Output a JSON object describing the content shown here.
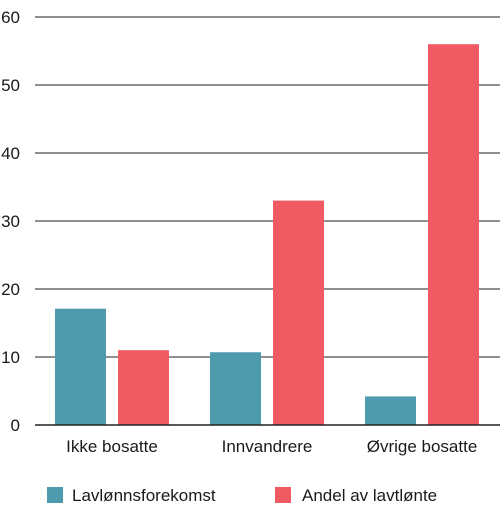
{
  "chart_data": {
    "type": "bar",
    "title": "",
    "xlabel": "",
    "ylabel": "",
    "categories": [
      "Ikke bosatte",
      "Innvandrere",
      "Øvrige bosatte"
    ],
    "series": [
      {
        "name": "Lavlønnsforekomst",
        "values": [
          17.1,
          10.7,
          4.2
        ],
        "color": "#4e9bad"
      },
      {
        "name": "Andel av lavtlønte",
        "values": [
          11.0,
          33.0,
          56.0
        ],
        "color": "#ef5a63"
      }
    ],
    "ylim": [
      0,
      60
    ],
    "yticks": [
      0,
      10,
      20,
      30,
      40,
      50,
      60
    ],
    "grid": true,
    "legend_position": "bottom"
  }
}
